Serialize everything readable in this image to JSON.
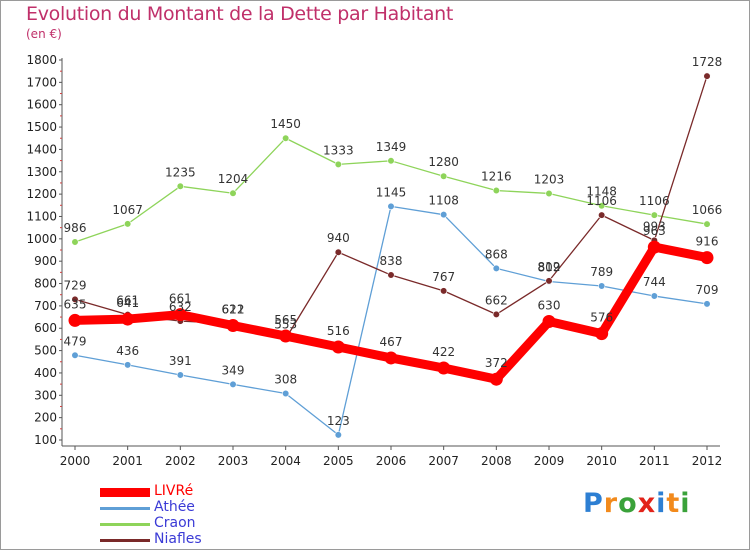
{
  "chart_data": {
    "type": "line",
    "title": "Evolution du Montant de la Dette par Habitant",
    "subtitle": "(en €)",
    "xlabel": "",
    "ylabel": "",
    "x": [
      "2000",
      "2001",
      "2002",
      "2003",
      "2004",
      "2005",
      "2006",
      "2007",
      "2008",
      "2009",
      "2010",
      "2011",
      "2012"
    ],
    "ylim": [
      100,
      1800
    ],
    "yticks": [
      100,
      200,
      300,
      400,
      500,
      600,
      700,
      800,
      900,
      1000,
      1100,
      1200,
      1300,
      1400,
      1500,
      1600,
      1700,
      1800
    ],
    "grid": false,
    "legend_position": "bottom-left",
    "series": [
      {
        "name": "LIVRé",
        "color": "#ff0000",
        "values": [
          635,
          641,
          661,
          612,
          565,
          516,
          467,
          422,
          372,
          630,
          576,
          963,
          916
        ],
        "labels": [
          "635",
          "641",
          "661",
          "612",
          "565",
          "516",
          "467",
          "422",
          "372",
          "630",
          "576",
          "963",
          "916"
        ]
      },
      {
        "name": "Athée",
        "color": "#5f9fd6",
        "values": [
          479,
          436,
          391,
          349,
          308,
          123,
          1145,
          1108,
          868,
          809,
          789,
          744,
          709
        ],
        "labels": [
          "479",
          "436",
          "391",
          "349",
          "308",
          "123",
          "1145",
          "1108",
          "868",
          "809",
          "789",
          "744",
          "709"
        ]
      },
      {
        "name": "Craon",
        "color": "#8ed45a",
        "values": [
          986,
          1067,
          1235,
          1204,
          1450,
          1333,
          1349,
          1280,
          1216,
          1203,
          1148,
          1106,
          1066
        ],
        "labels": [
          "986",
          "1067",
          "1235",
          "1204",
          "1450",
          "1333",
          "1349",
          "1280",
          "1216",
          "1203",
          "1148",
          "1106",
          "1066"
        ]
      },
      {
        "name": "Niafles",
        "color": "#7a2a2a",
        "values": [
          729,
          661,
          632,
          621,
          553,
          940,
          838,
          767,
          662,
          812,
          1106,
          993,
          1728
        ],
        "labels": [
          "729",
          "661",
          "632",
          "621",
          "553",
          "940",
          "838",
          "767",
          "662",
          "812",
          "1106",
          "993",
          "1728"
        ]
      }
    ]
  },
  "legend": {
    "items": [
      {
        "label": "LIVRé",
        "color": "#ff0000"
      },
      {
        "label": "Athée",
        "color": "#5f9fd6"
      },
      {
        "label": "Craon",
        "color": "#8ed45a"
      },
      {
        "label": "Niafles",
        "color": "#7a2a2a"
      }
    ]
  },
  "logo": {
    "letters": [
      "P",
      "r",
      "o",
      "x",
      "i",
      "t",
      "i"
    ],
    "colors": [
      "#2d7fd3",
      "#f28a1c",
      "#3aa23a",
      "#e2231a",
      "#2d7fd3",
      "#f28a1c",
      "#3aa23a"
    ]
  }
}
